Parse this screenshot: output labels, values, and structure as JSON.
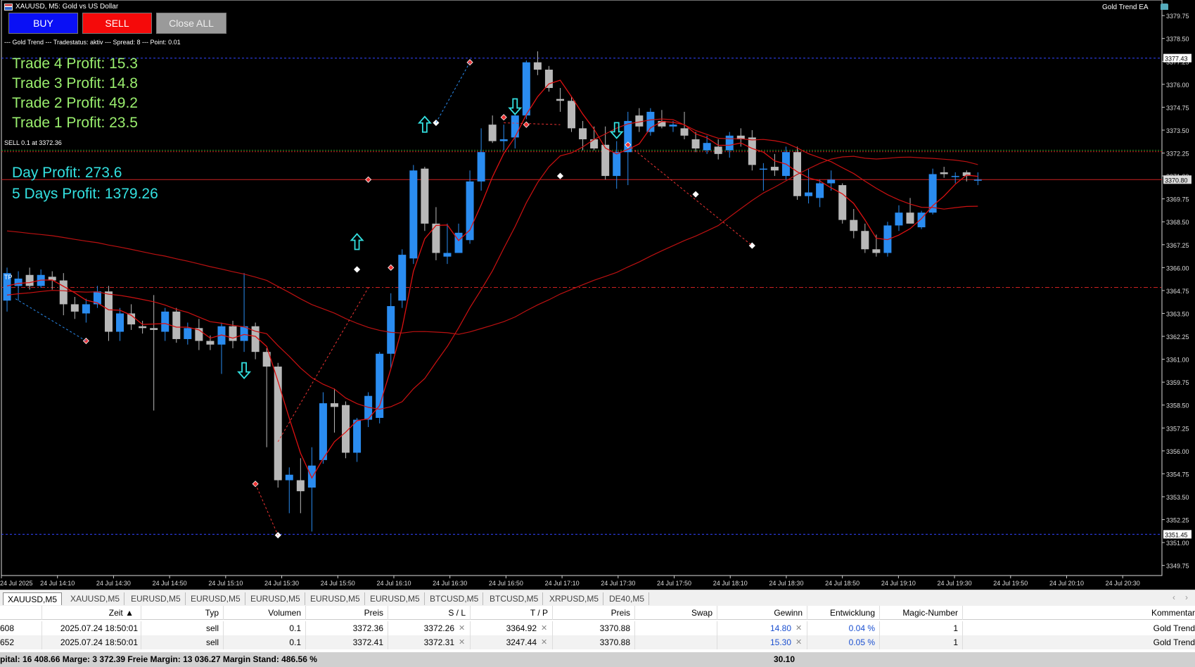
{
  "window": {
    "title": "XAUUSD, M5:  Gold vs US Dollar",
    "ea_name": "Gold Trend EA"
  },
  "buttons": {
    "buy": "BUY",
    "sell": "SELL",
    "close_all": "Close ALL"
  },
  "status_line": "--- Gold Trend --- Tradestatus: aktiv --- Spread: 8 --- Point: 0.01",
  "profits": {
    "trades": [
      "Trade 4 Profit: 15.3",
      "Trade 3 Profit: 14.8",
      "Trade 2 Profit: 49.2",
      "Trade 1 Profit: 23.5"
    ],
    "day": "Day Profit: 273.6",
    "five_days": "5 Days Profit: 1379.26"
  },
  "labels": {
    "sell_line": "SELL 0.1 at 3372.36",
    "tp": "TP"
  },
  "chart_data": {
    "type": "candlestick",
    "symbol": "XAUUSD",
    "timeframe": "M5",
    "y_ticks": [
      "3379.75",
      "3378.50",
      "3377.25",
      "3376.00",
      "3374.75",
      "3373.50",
      "3372.25",
      "3371.00",
      "3369.75",
      "3368.50",
      "3367.25",
      "3366.00",
      "3364.75",
      "3363.50",
      "3362.25",
      "3361.00",
      "3359.75",
      "3358.50",
      "3357.25",
      "3356.00",
      "3354.75",
      "3353.50",
      "3352.25",
      "3351.00",
      "3349.75"
    ],
    "y_range": [
      3349.2,
      3380.6
    ],
    "x_ticks": [
      "24 Jul 2025",
      "24 Jul 14:10",
      "24 Jul 14:30",
      "24 Jul 14:50",
      "24 Jul 15:10",
      "24 Jul 15:30",
      "24 Jul 15:50",
      "24 Jul 16:10",
      "24 Jul 16:30",
      "24 Jul 16:50",
      "24 Jul 17:10",
      "24 Jul 17:30",
      "24 Jul 17:50",
      "24 Jul 18:10",
      "24 Jul 18:30",
      "24 Jul 18:50",
      "24 Jul 19:10",
      "24 Jul 19:30",
      "24 Jul 19:50",
      "24 Jul 20:10",
      "24 Jul 20:30"
    ],
    "price_labels": {
      "high_line": "3377.43",
      "current": "3370.80",
      "low_line": "3351.45"
    },
    "levels": {
      "high": 3377.43,
      "low": 3351.45,
      "current": 3370.8,
      "entry": 3372.36,
      "tp": 3364.92
    },
    "candles": [
      [
        3364.2,
        3366.0,
        3363.6,
        3365.7
      ],
      [
        3365.0,
        3365.8,
        3364.2,
        3365.4
      ],
      [
        3365.6,
        3366.0,
        3364.8,
        3365.0
      ],
      [
        3365.0,
        3365.9,
        3364.9,
        3365.6
      ],
      [
        3365.5,
        3365.8,
        3364.8,
        3365.3
      ],
      [
        3365.3,
        3365.7,
        3363.4,
        3364.0
      ],
      [
        3364.0,
        3364.4,
        3363.2,
        3363.6
      ],
      [
        3363.5,
        3364.3,
        3363.0,
        3364.0
      ],
      [
        3364.0,
        3365.0,
        3363.8,
        3364.7
      ],
      [
        3364.7,
        3365.0,
        3362.0,
        3362.5
      ],
      [
        3362.5,
        3363.8,
        3362.0,
        3363.5
      ],
      [
        3363.5,
        3364.0,
        3362.6,
        3362.9
      ],
      [
        3362.8,
        3363.1,
        3362.4,
        3362.7
      ],
      [
        3362.7,
        3364.5,
        3358.2,
        3362.6
      ],
      [
        3362.5,
        3363.8,
        3362.0,
        3363.6
      ],
      [
        3363.6,
        3363.8,
        3361.9,
        3362.1
      ],
      [
        3362.1,
        3363.0,
        3361.8,
        3362.7
      ],
      [
        3362.7,
        3363.2,
        3361.5,
        3362.0
      ],
      [
        3362.0,
        3362.3,
        3361.5,
        3361.8
      ],
      [
        3361.8,
        3363.0,
        3360.2,
        3362.8
      ],
      [
        3362.8,
        3363.1,
        3361.6,
        3362.0
      ],
      [
        3362.0,
        3365.7,
        3361.4,
        3362.8
      ],
      [
        3362.8,
        3363.0,
        3361.0,
        3361.4
      ],
      [
        3361.4,
        3361.6,
        3356.2,
        3360.6
      ],
      [
        3360.6,
        3360.8,
        3354.0,
        3354.4
      ],
      [
        3354.4,
        3355.1,
        3352.6,
        3354.7
      ],
      [
        3354.4,
        3355.6,
        3352.6,
        3353.8
      ],
      [
        3354.0,
        3356.2,
        3351.6,
        3355.2
      ],
      [
        3355.5,
        3359.2,
        3355.3,
        3358.6
      ],
      [
        3358.6,
        3359.4,
        3357.0,
        3358.4
      ],
      [
        3358.5,
        3358.7,
        3355.6,
        3355.9
      ],
      [
        3355.9,
        3357.8,
        3355.4,
        3357.7
      ],
      [
        3357.7,
        3359.2,
        3357.3,
        3359.0
      ],
      [
        3357.8,
        3361.4,
        3357.5,
        3361.3
      ],
      [
        3361.3,
        3364.6,
        3360.5,
        3363.9
      ],
      [
        3364.2,
        3367.0,
        3363.8,
        3366.7
      ],
      [
        3366.5,
        3371.6,
        3366.2,
        3371.3
      ],
      [
        3371.4,
        3371.5,
        3368.0,
        3368.4
      ],
      [
        3368.4,
        3369.3,
        3366.4,
        3366.8
      ],
      [
        3366.6,
        3368.4,
        3366.2,
        3366.8
      ],
      [
        3366.8,
        3368.4,
        3366.8,
        3367.9
      ],
      [
        3367.5,
        3371.3,
        3367.3,
        3370.7
      ],
      [
        3370.7,
        3373.6,
        3370.2,
        3372.3
      ],
      [
        3373.8,
        3374.3,
        3372.8,
        3372.9
      ],
      [
        3372.9,
        3373.8,
        3372.4,
        3373.0
      ],
      [
        3373.1,
        3374.4,
        3372.5,
        3374.3
      ],
      [
        3374.3,
        3377.3,
        3374.1,
        3377.2
      ],
      [
        3377.2,
        3377.8,
        3376.5,
        3376.8
      ],
      [
        3376.8,
        3377.0,
        3375.6,
        3375.8
      ],
      [
        3375.2,
        3375.8,
        3374.5,
        3375.1
      ],
      [
        3375.1,
        3375.3,
        3373.4,
        3373.6
      ],
      [
        3373.6,
        3374.0,
        3372.4,
        3373.0
      ],
      [
        3373.0,
        3373.7,
        3372.4,
        3372.5
      ],
      [
        3372.7,
        3373.7,
        3370.8,
        3371.0
      ],
      [
        3371.0,
        3372.9,
        3370.3,
        3372.3
      ],
      [
        3372.3,
        3374.5,
        3370.5,
        3374.0
      ],
      [
        3374.3,
        3374.7,
        3373.4,
        3373.7
      ],
      [
        3373.4,
        3374.7,
        3373.2,
        3374.5
      ],
      [
        3374.0,
        3374.6,
        3373.6,
        3373.7
      ],
      [
        3373.7,
        3374.0,
        3373.4,
        3373.8
      ],
      [
        3373.6,
        3374.5,
        3373.0,
        3373.2
      ],
      [
        3373.0,
        3373.4,
        3372.3,
        3372.5
      ],
      [
        3372.4,
        3373.2,
        3372.2,
        3372.8
      ],
      [
        3372.6,
        3373.0,
        3371.9,
        3372.2
      ],
      [
        3372.4,
        3373.4,
        3372.0,
        3373.2
      ],
      [
        3373.2,
        3373.6,
        3372.6,
        3373.0
      ],
      [
        3373.1,
        3373.5,
        3371.3,
        3371.6
      ],
      [
        3371.4,
        3371.7,
        3370.2,
        3371.4
      ],
      [
        3371.5,
        3372.2,
        3371.0,
        3371.3
      ],
      [
        3371.0,
        3372.6,
        3370.8,
        3372.3
      ],
      [
        3372.3,
        3372.6,
        3369.7,
        3369.9
      ],
      [
        3369.9,
        3371.4,
        3369.5,
        3370.1
      ],
      [
        3369.8,
        3370.8,
        3369.3,
        3370.6
      ],
      [
        3370.6,
        3371.3,
        3370.2,
        3370.8
      ],
      [
        3370.5,
        3370.6,
        3368.4,
        3368.6
      ],
      [
        3368.6,
        3369.2,
        3367.6,
        3368.0
      ],
      [
        3368.0,
        3368.4,
        3366.8,
        3367.0
      ],
      [
        3367.0,
        3367.8,
        3366.6,
        3366.8
      ],
      [
        3366.8,
        3368.5,
        3366.6,
        3368.3
      ],
      [
        3368.3,
        3369.4,
        3368.0,
        3369.0
      ],
      [
        3369.0,
        3369.8,
        3368.5,
        3368.4
      ],
      [
        3368.2,
        3369.1,
        3368.1,
        3369.0
      ],
      [
        3369.0,
        3371.4,
        3368.9,
        3371.1
      ],
      [
        3371.2,
        3371.5,
        3370.9,
        3371.1
      ],
      [
        3371.0,
        3371.2,
        3370.6,
        3371.0
      ],
      [
        3371.2,
        3371.3,
        3370.7,
        3371.0
      ],
      [
        3370.8,
        3371.2,
        3370.5,
        3370.8
      ]
    ]
  },
  "tabs": [
    "XAUUSD,M5",
    "XAUUSD,M5",
    "EURUSD,M5",
    "EURUSD,M5",
    "EURUSD,M5",
    "EURUSD,M5",
    "EURUSD,M5",
    "BTCUSD,M5",
    "BTCUSD,M5",
    "XRPUSD,M5",
    "DE40,M5"
  ],
  "table": {
    "headers": [
      "Zeit",
      "Typ",
      "Volumen",
      "Preis",
      "S / L",
      "T / P",
      "Preis",
      "Swap",
      "Gewinn",
      "Entwicklung",
      "Magic-Number",
      "Kommentar"
    ],
    "rows": [
      {
        "ticket": "608",
        "time": "2025.07.24 18:50:01",
        "type": "sell",
        "volume": "0.1",
        "price": "3372.36",
        "sl": "3372.26",
        "tp": "3364.92",
        "cur": "3370.88",
        "swap": "",
        "profit": "14.80",
        "dev": "0.04 %",
        "magic": "1",
        "comment": "Gold Trend"
      },
      {
        "ticket": "652",
        "time": "2025.07.24 18:50:01",
        "type": "sell",
        "volume": "0.1",
        "price": "3372.41",
        "sl": "3372.31",
        "tp": "3247.44",
        "cur": "3370.88",
        "swap": "",
        "profit": "15.30",
        "dev": "0.05 %",
        "magic": "1",
        "comment": "Gold Trend"
      }
    ],
    "status": "pital: 16 408.66  Marge: 3 372.39  Freie Margin: 13 036.27  Margin Stand: 486.56 %",
    "total_profit": "30.10"
  }
}
